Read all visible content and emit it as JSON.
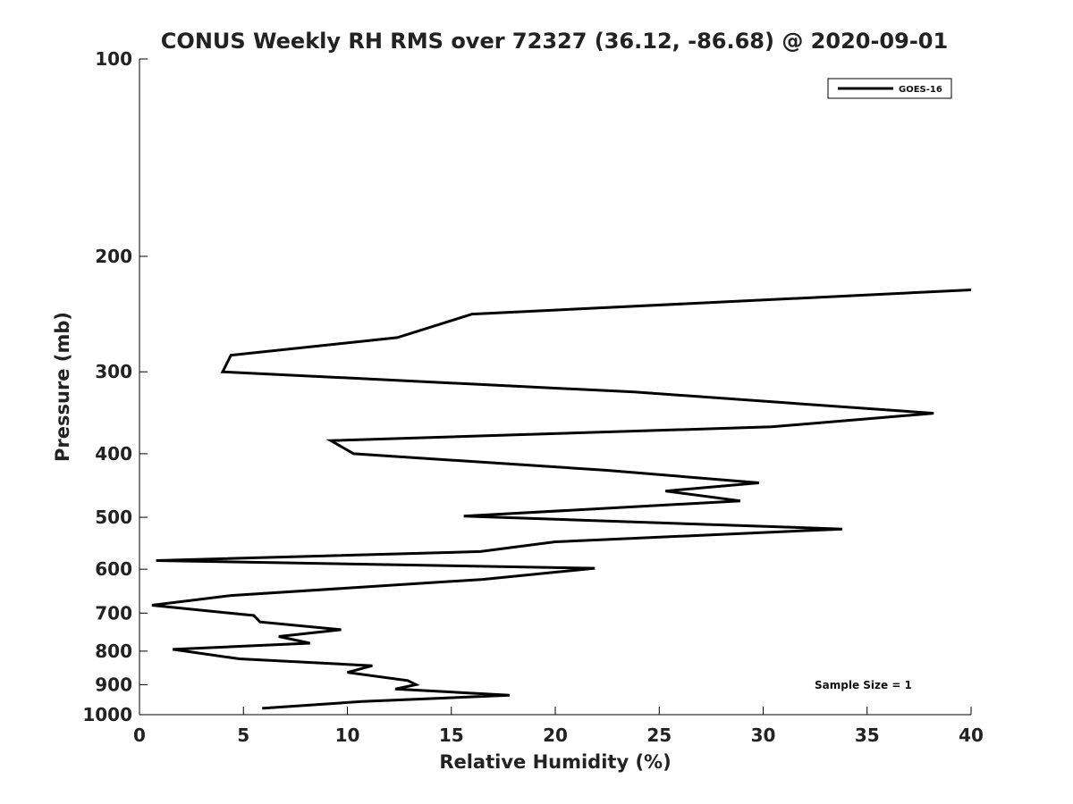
{
  "chart_data": {
    "type": "line",
    "title": "CONUS Weekly RH RMS over 72327 (36.12, -86.68) @ 2020-09-01",
    "xlabel": "Relative Humidity (%)",
    "ylabel": "Pressure (mb)",
    "xlim": [
      0,
      40
    ],
    "ylim": [
      100,
      1000
    ],
    "yscale": "log",
    "y_reversed": true,
    "x_ticks": [
      0,
      5,
      10,
      15,
      20,
      25,
      30,
      35,
      40
    ],
    "y_ticks": [
      100,
      200,
      300,
      400,
      500,
      600,
      700,
      800,
      900,
      1000
    ],
    "grid": false,
    "legend_position": "top-right",
    "annotation": "Sample Size = 1",
    "series": [
      {
        "name": "GOES-16",
        "color": "#000000",
        "points": [
          [
            40.0,
            225
          ],
          [
            16.0,
            245
          ],
          [
            12.4,
            266
          ],
          [
            4.4,
            283
          ],
          [
            4.0,
            300
          ],
          [
            23.8,
            322
          ],
          [
            38.2,
            347
          ],
          [
            30.4,
            364
          ],
          [
            9.2,
            382
          ],
          [
            10.3,
            400
          ],
          [
            22.5,
            424
          ],
          [
            29.8,
            443
          ],
          [
            25.3,
            456
          ],
          [
            28.9,
            472
          ],
          [
            15.6,
            498
          ],
          [
            33.8,
            521
          ],
          [
            20.0,
            545
          ],
          [
            16.4,
            564
          ],
          [
            0.8,
            582
          ],
          [
            21.9,
            598
          ],
          [
            16.5,
            622
          ],
          [
            4.4,
            658
          ],
          [
            0.6,
            681
          ],
          [
            5.5,
            706
          ],
          [
            5.8,
            722
          ],
          [
            9.7,
            742
          ],
          [
            6.7,
            760
          ],
          [
            8.2,
            778
          ],
          [
            1.6,
            795
          ],
          [
            4.8,
            822
          ],
          [
            11.2,
            842
          ],
          [
            10.0,
            862
          ],
          [
            12.9,
            887
          ],
          [
            13.3,
            900
          ],
          [
            12.3,
            914
          ],
          [
            17.8,
            934
          ],
          [
            10.7,
            955
          ],
          [
            5.9,
            978
          ]
        ]
      }
    ]
  }
}
